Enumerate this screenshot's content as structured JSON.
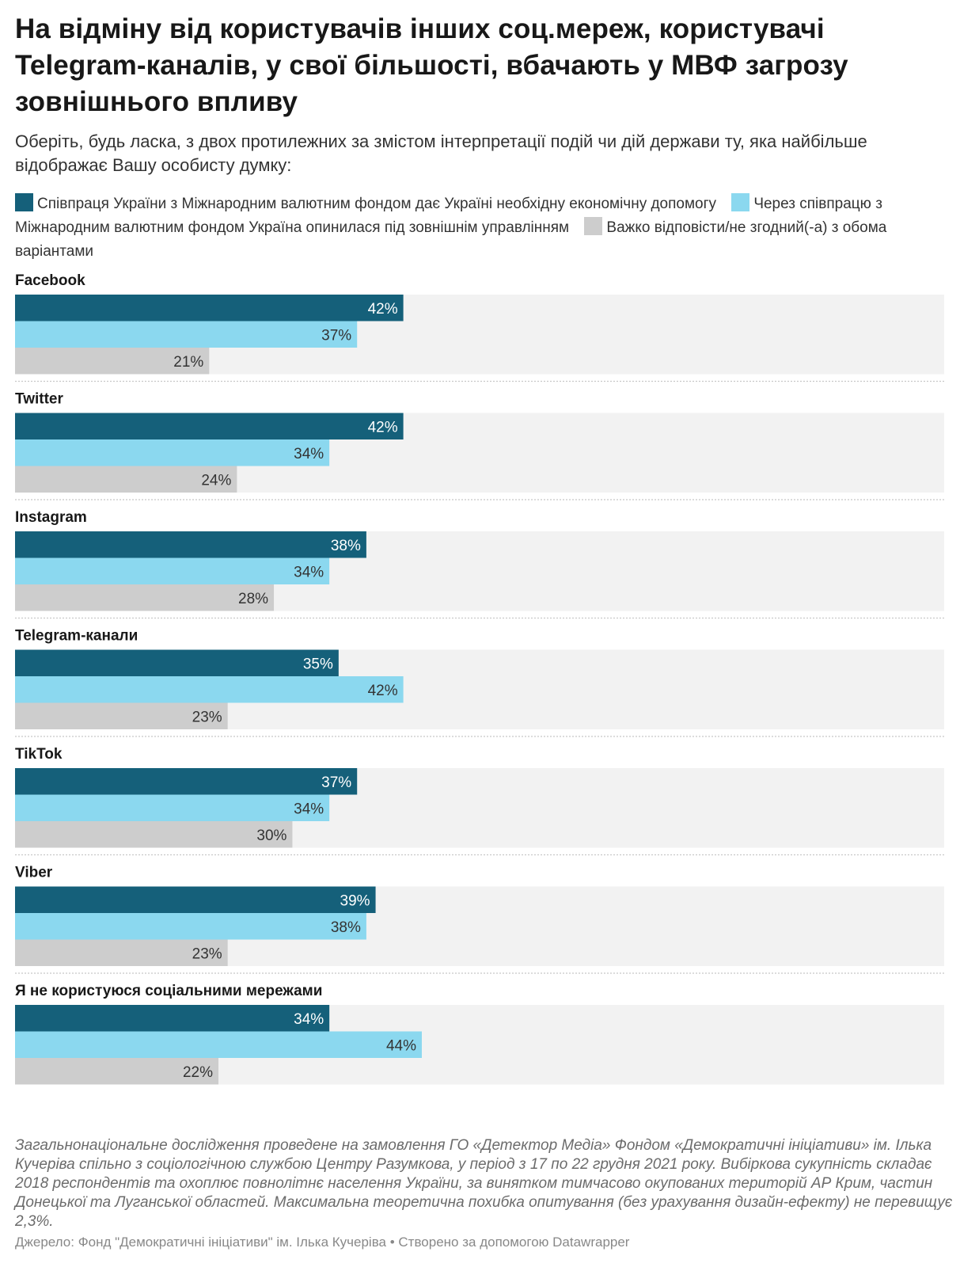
{
  "title": "На відміну від користувачів інших соц.мереж, користувачі Telegram-каналів, у свої більшості, вбачають у МВФ загрозу зовнішнього впливу",
  "subtitle": "Оберіть, будь ласка, з двох протилежних за змістом інтерпретації подій чи дій держави ту, яка найбільше відображає Вашу особисту думку:",
  "chart_data": {
    "type": "bar",
    "orientation": "horizontal",
    "grouped": true,
    "xlim": [
      0,
      100
    ],
    "value_suffix": "%",
    "grid": false,
    "legend_position": "top",
    "categories": [
      "Facebook",
      "Twitter",
      "Instagram",
      "Telegram-канали",
      "TikTok",
      "Viber",
      "Я не користуюся соціальними мережами"
    ],
    "series": [
      {
        "name": "Співпраця України з Міжнародним валютним фондом дає Україні необхідну економічну допомогу",
        "color": "#15607a",
        "label_color": "#ffffff",
        "values": [
          42,
          42,
          38,
          35,
          37,
          39,
          34
        ]
      },
      {
        "name": "Через співпрацю з Міжнародним валютним фондом Україна опинилася під зовнішнім управлінням",
        "color": "#8bd8ef",
        "label_color": "#333333",
        "values": [
          37,
          34,
          34,
          42,
          34,
          38,
          44
        ]
      },
      {
        "name": "Важко відповісти/не згодний(-а) з обома варіантами",
        "color": "#cdcdcd",
        "label_color": "#333333",
        "values": [
          21,
          24,
          28,
          23,
          30,
          23,
          22
        ]
      }
    ]
  },
  "notes": "Загальнонаціональне дослідження проведене на замовлення ГО «Детектор Медіа» Фондом «Демократичні ініціативи» ім. Ілька Кучеріва спільно з соціологічною службою Центру Разумкова, у період з 17 по 22 грудня 2021 року. Вибіркова сукупність складає 2018 респондентів та охоплює повнолітнє населення України, за винятком тимчасово окупованих територій АР Крим, частин Донецької та Луганської областей. Максимальна теоретична похибка опитування (без урахування дизайн-ефекту) не перевищує 2,3%.",
  "source": {
    "label": "Джерело: Фонд \"Демократичні ініціативи\" ім. Ілька Кучеріва",
    "separator": " • ",
    "credit": "Створено за допомогою Datawrapper"
  }
}
